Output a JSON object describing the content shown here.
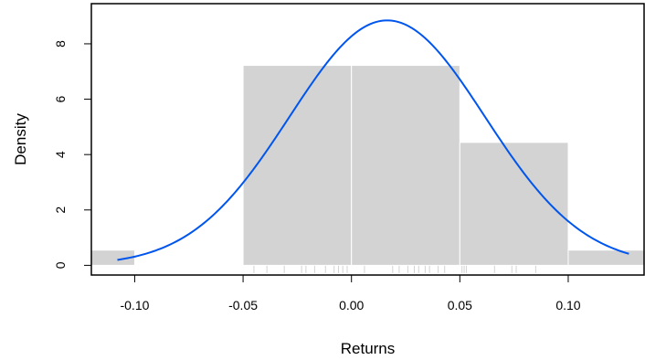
{
  "chart_data": {
    "type": "histogram",
    "title": "",
    "xlabel": "Returns",
    "ylabel": "Density",
    "xlim": [
      -0.12,
      0.135
    ],
    "ylim": [
      -0.35,
      9.45
    ],
    "x_ticks": [
      -0.1,
      -0.05,
      0.0,
      0.05,
      0.1
    ],
    "x_tick_labels": [
      "-0.10",
      "-0.05",
      "0.00",
      "0.05",
      "0.10"
    ],
    "y_ticks": [
      0,
      2,
      4,
      6,
      8
    ],
    "y_tick_labels": [
      "0",
      "2",
      "4",
      "6",
      "8"
    ],
    "grid": false,
    "bars": [
      {
        "x0": -0.15,
        "x1": -0.1,
        "density": 0.55
      },
      {
        "x0": -0.1,
        "x1": -0.05,
        "density": 0.0
      },
      {
        "x0": -0.05,
        "x1": 0.0,
        "density": 7.22
      },
      {
        "x0": 0.0,
        "x1": 0.05,
        "density": 7.22
      },
      {
        "x0": 0.05,
        "x1": 0.1,
        "density": 4.44
      },
      {
        "x0": 0.1,
        "x1": 0.15,
        "density": 0.55
      }
    ],
    "density_curve": {
      "type": "normal",
      "mean": 0.0165,
      "sd": 0.0451,
      "x_from": -0.108,
      "x_to": 0.128,
      "color": "#0055ee"
    },
    "rug": [
      -0.045,
      -0.039,
      -0.031,
      -0.023,
      -0.021,
      -0.017,
      -0.012,
      -0.008,
      -0.006,
      -0.004,
      -0.002,
      0.006,
      0.019,
      0.022,
      0.026,
      0.029,
      0.031,
      0.034,
      0.036,
      0.04,
      0.043,
      0.051,
      0.052,
      0.053,
      0.066,
      0.074,
      0.076,
      0.085
    ],
    "colors": {
      "bar_fill": "#d3d3d3",
      "bar_border": "#ffffff",
      "curve": "#0055ee",
      "axis": "#000000",
      "rug": "#d3d3d3"
    }
  }
}
